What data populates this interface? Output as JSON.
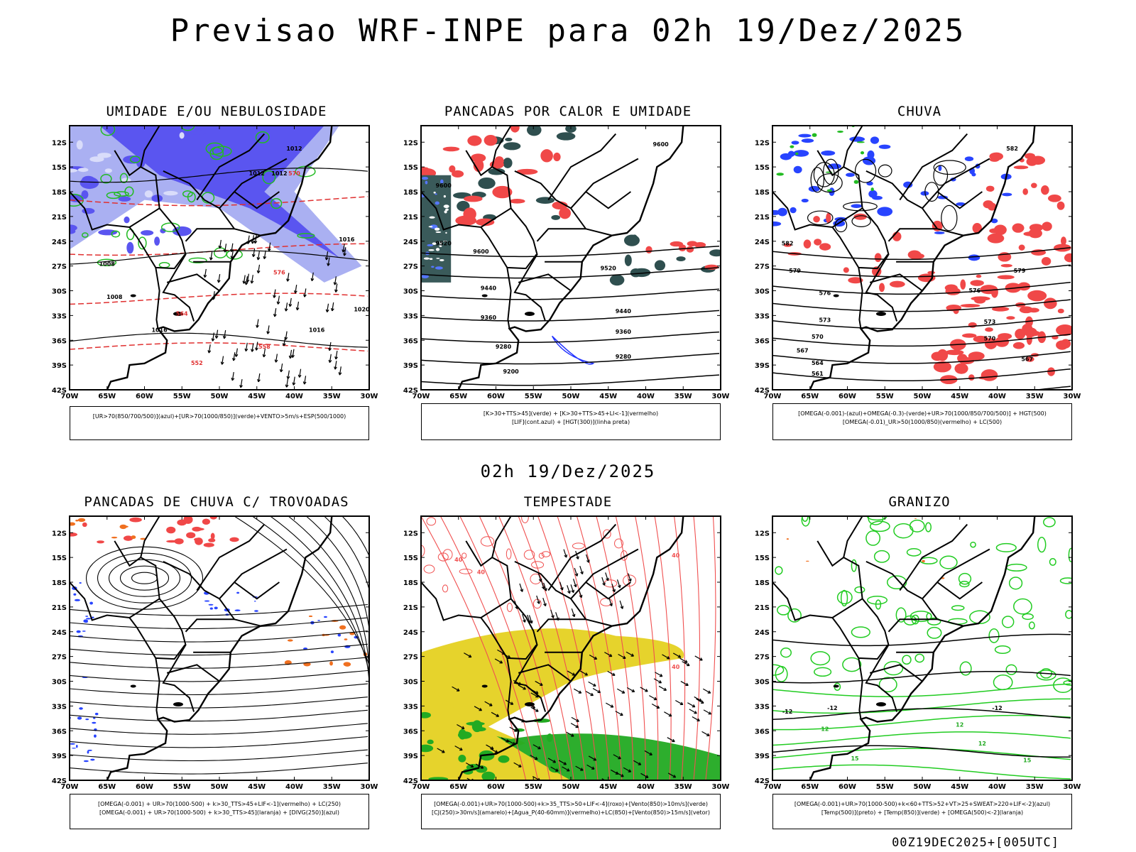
{
  "title": "Previsao WRF-INPE  para 02h 19/Dez/2025",
  "mid_title": "02h 19/Dez/2025",
  "footer": "00Z19DEC2025+[005UTC]",
  "axis": {
    "lat_labels": [
      "12S",
      "15S",
      "18S",
      "21S",
      "24S",
      "27S",
      "30S",
      "33S",
      "36S",
      "39S",
      "42S"
    ],
    "lon_labels": [
      "70W",
      "65W",
      "60W",
      "55W",
      "50W",
      "45W",
      "40W",
      "35W",
      "30W"
    ]
  },
  "panels": [
    {
      "title": "UMIDADE E/OU NEBULOSIDADE",
      "legend_lines": [
        "[UR>70(850/700/500)](azul)+[UR>70(1000/850)](verde)+VENTO>5m/s+ESP(500/1000)"
      ],
      "contour_labels": [
        "1012",
        "1012",
        "1012",
        "1016",
        "1016",
        "1008",
        "1008",
        "1020",
        "1016",
        "576",
        "570",
        "564",
        "558",
        "552"
      ]
    },
    {
      "title": "PANCADAS POR CALOR E UMIDADE",
      "legend_lines": [
        "[K>30+TTS>45](verde) + [K>30+TTS>45+LI<-1](vermelho)",
        "[LIF](cont.azul) + [HGT(300)](linha preta)"
      ],
      "contour_labels": [
        "9600",
        "9600",
        "9520",
        "9600",
        "9520",
        "9440",
        "9440",
        "9360",
        "9360",
        "9280",
        "9280",
        "9200"
      ]
    },
    {
      "title": "CHUVA",
      "legend_lines": [
        "[OMEGA(-0.001)-(azul)+OMEGA(-0.3)-(verde)+UR>70(1000/850/700/500)] + HGT(500)",
        "[OMEGA(-0.01)_UR>50(1000/850)(vermelho) + LC(500)"
      ],
      "contour_labels": [
        "582",
        "582",
        "579",
        "579",
        "576",
        "573",
        "570",
        "567",
        "564",
        "561",
        "576",
        "573",
        "570",
        "567"
      ]
    },
    {
      "title": "PANCADAS DE CHUVA C/ TROVOADAS",
      "legend_lines": [
        "[OMEGA(-0.001) + UR>70(1000-500) + k>30_TTS>45+LIF<-1](vermelho) + LC(250)",
        "[OMEGA(-0.001) + UR>70(1000-500) + k>30_TTS>45](laranja) + [DIVG(250)](azul)"
      ],
      "contour_labels": []
    },
    {
      "title": "TEMPESTADE",
      "legend_lines": [
        "[OMEGA(-0.001)+UR>70(1000-500)+k>35_TTS>50+LIF<-4](roxo)+[Vento(850)>10m/s](verde)",
        "[CJ(250)>30m/s](amarelo)+[Agua_P(40-60mm)](vermelho)+LC(850)+[Vento(850)>15m/s](vetor)"
      ],
      "contour_labels": [
        "40",
        "40",
        "40",
        "40"
      ]
    },
    {
      "title": "GRANIZO",
      "legend_lines": [
        "[OMEGA(-0.001)+UR>70(1000-500)+k<60+TTS>52+VT>25+SWEAT>220+LIF<-2](azul)",
        "[Temp(500)](preto) + [Temp(850)](verde) + [OMEGA(500)<-2](laranja)"
      ],
      "contour_labels": [
        "-12",
        "-12",
        "-12",
        "12",
        "12",
        "15",
        "12",
        "15"
      ]
    }
  ]
}
